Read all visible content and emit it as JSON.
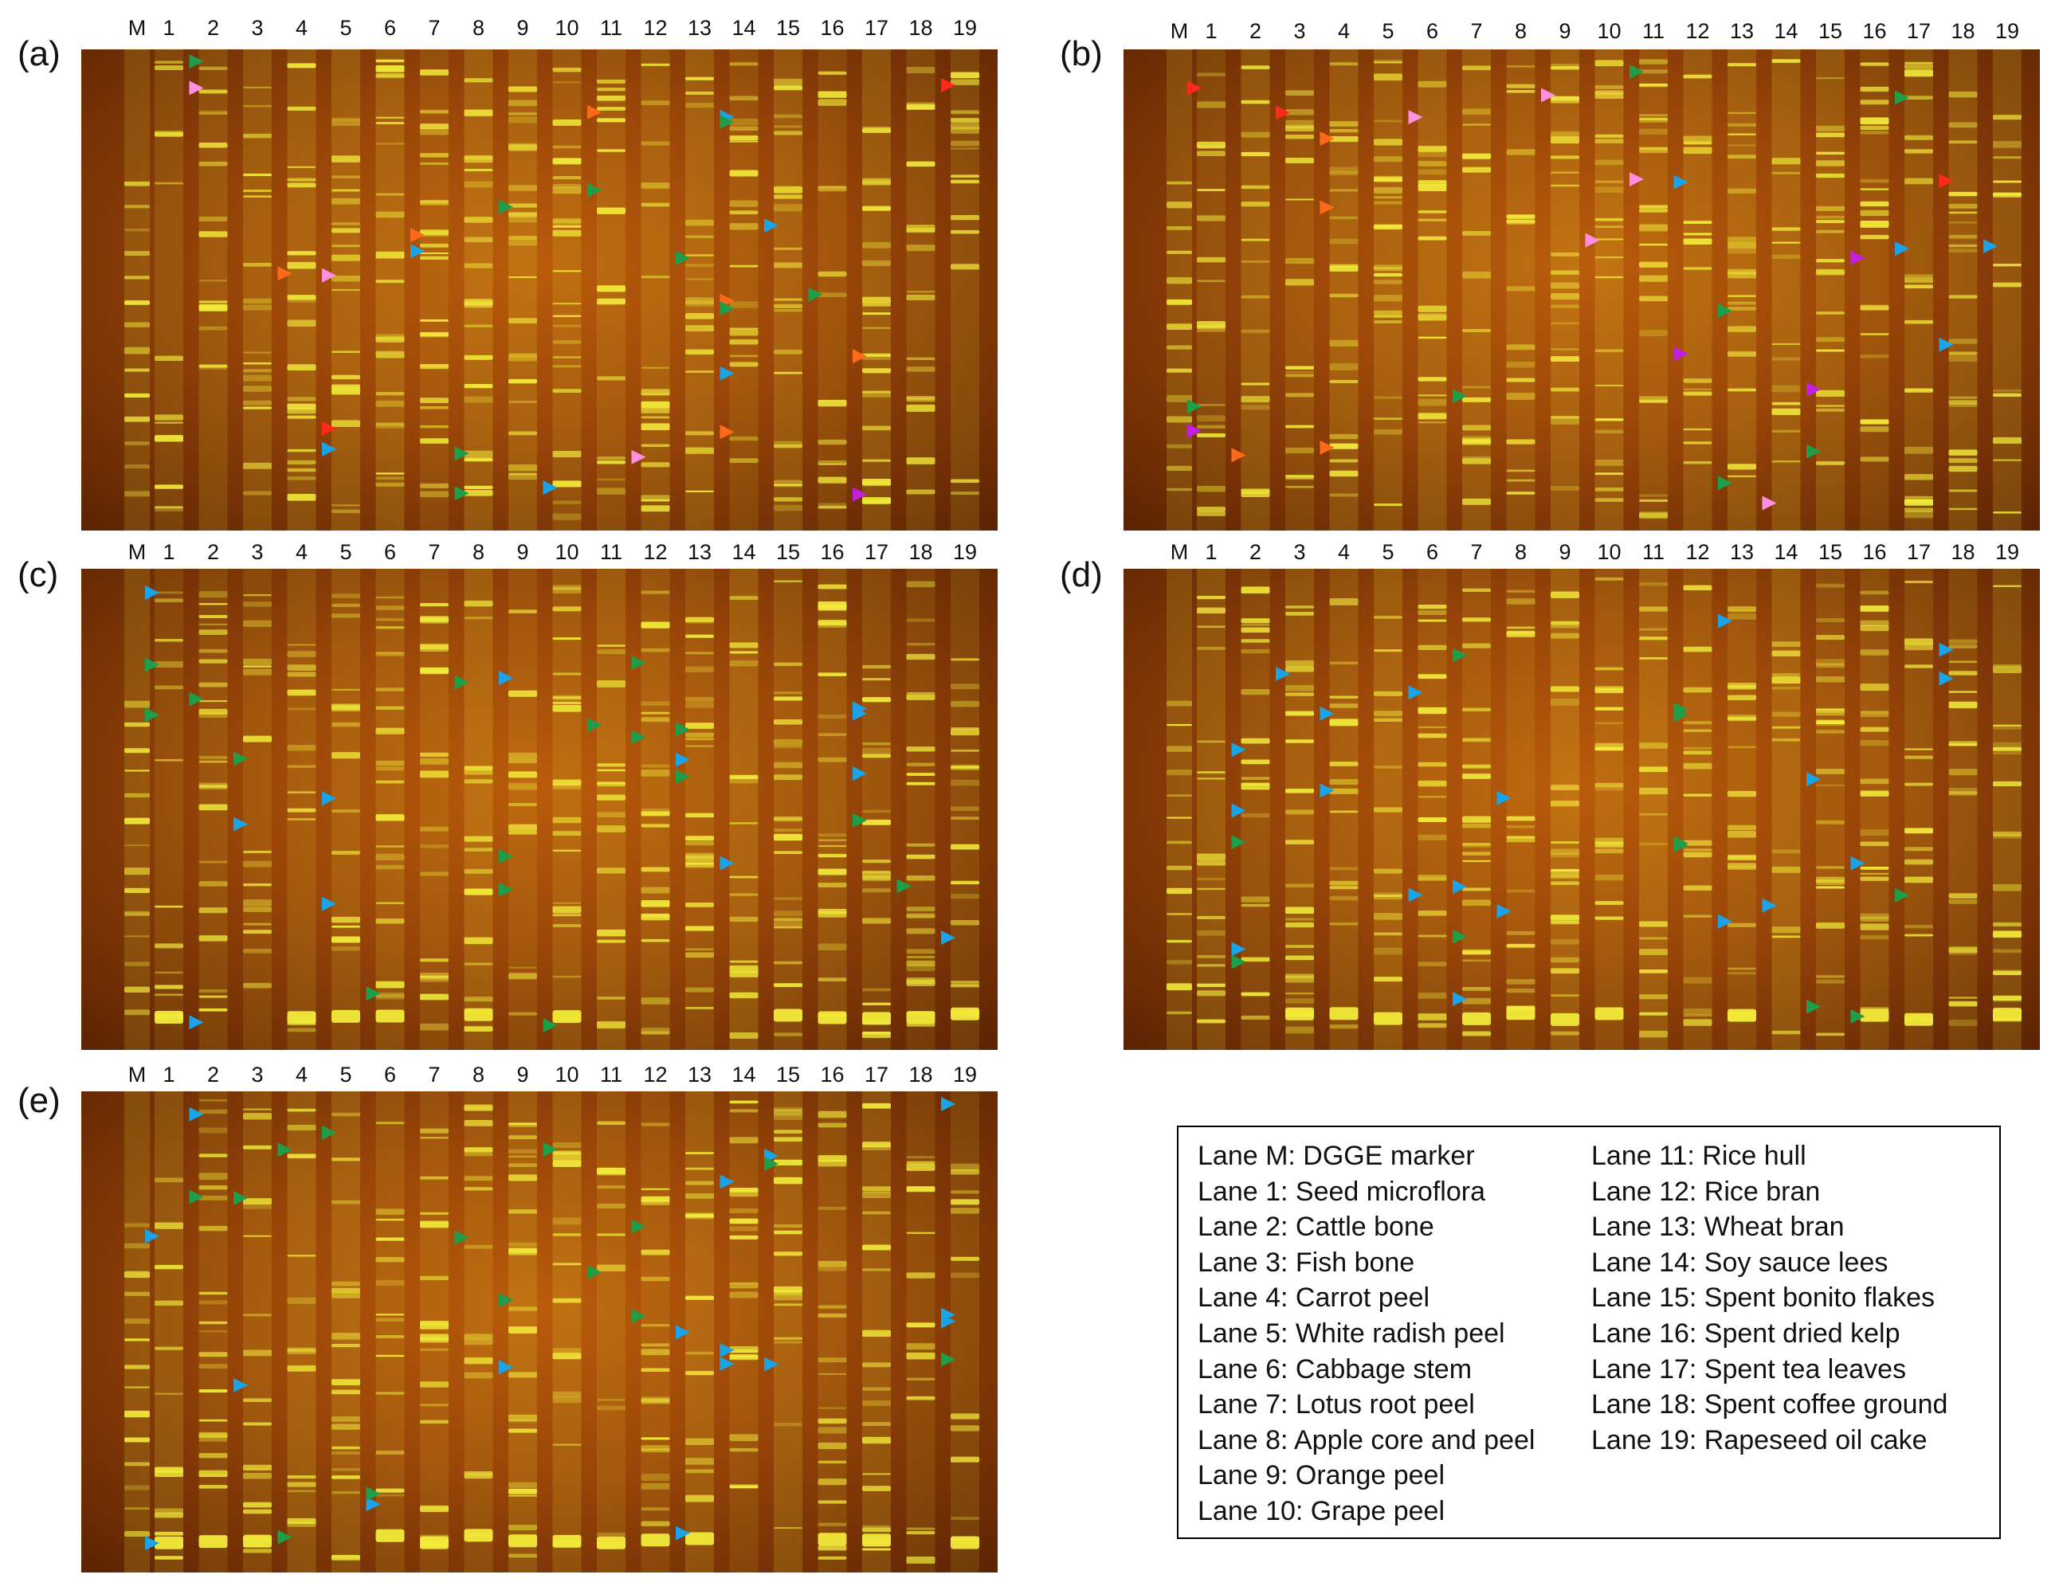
{
  "panels": [
    {
      "label": "(a)"
    },
    {
      "label": "(b)"
    },
    {
      "label": "(c)"
    },
    {
      "label": "(d)"
    },
    {
      "label": "(e)"
    }
  ],
  "lane_labels": [
    "M",
    "1",
    "2",
    "3",
    "4",
    "5",
    "6",
    "7",
    "8",
    "9",
    "10",
    "11",
    "12",
    "13",
    "14",
    "15",
    "16",
    "17",
    "18",
    "19"
  ],
  "legend": {
    "left": [
      "Lane M: DGGE marker",
      "Lane 1: Seed microflora",
      "Lane 2: Cattle bone",
      "Lane 3: Fish bone",
      "Lane 4: Carrot peel",
      "Lane 5: White radish peel",
      "Lane 6: Cabbage stem",
      "Lane 7: Lotus root peel",
      "Lane 8: Apple core and peel",
      "Lane 9: Orange peel",
      "Lane 10: Grape peel"
    ],
    "right": [
      "Lane 11: Rice hull",
      "Lane 12: Rice bran",
      "Lane 13: Wheat bran",
      "Lane 14: Soy sauce lees",
      "Lane 15: Spent bonito flakes",
      "Lane 16: Spent dried kelp",
      "Lane 17: Spent tea leaves",
      "Lane 18: Spent coffee ground",
      "Lane 19: Rapeseed oil cake"
    ]
  },
  "marker_colors": {
    "green": "#1f9e4a",
    "blue": "#1aa3e6",
    "red": "#ff2a1a",
    "orange": "#ff6a1a",
    "magenta": "#c21fe0",
    "pink": "#ff8fe0"
  },
  "band_color": "#f2ea3a"
}
